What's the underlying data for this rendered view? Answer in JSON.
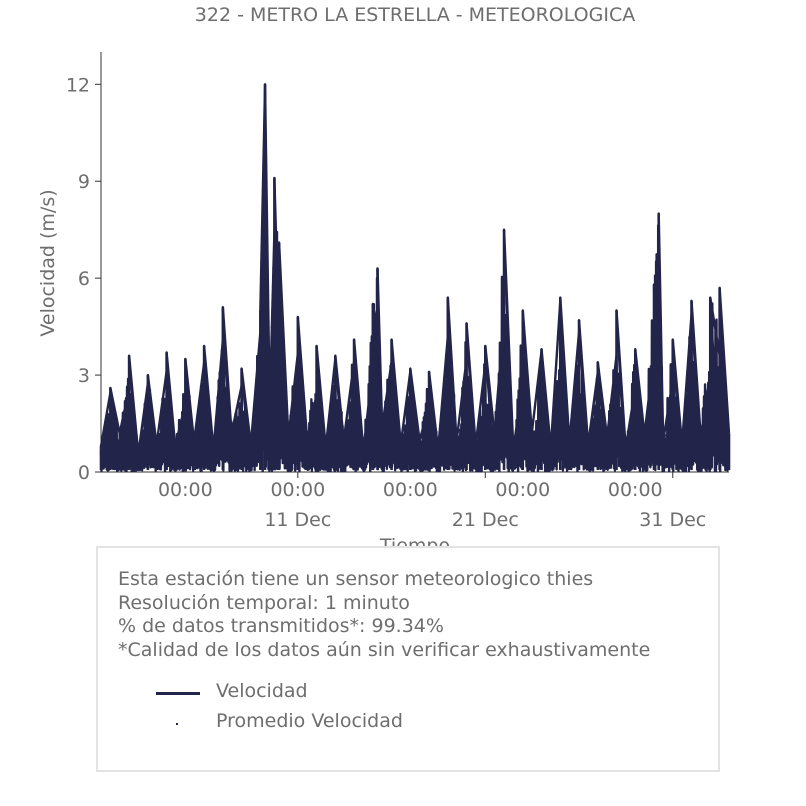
{
  "chart_data": {
    "type": "line",
    "title": "322 - METRO LA ESTRELLA - METEOROLOGICA",
    "xlabel": "Tiempo",
    "ylabel": "Velocidad (m/s)",
    "ylim": [
      0,
      13
    ],
    "yticks": [
      0,
      3,
      6,
      9,
      12
    ],
    "x_range": [
      "2023-11-30T12:00",
      "2024-01-03T00:00"
    ],
    "major_ticks": [
      {
        "x": "2023-12-11",
        "label": "11 Dec"
      },
      {
        "x": "2023-12-21",
        "label": "21 Dec"
      },
      {
        "x": "2023-12-31",
        "label": "31 Dec"
      }
    ],
    "minor_ticks": [
      {
        "x": "2023-12-05",
        "label": "00:00"
      },
      {
        "x": "2023-12-11T00:00",
        "label": "00:00"
      },
      {
        "x": "2023-12-17",
        "label": "00:00"
      },
      {
        "x": "2023-12-23",
        "label": "00:00"
      },
      {
        "x": "2023-12-29",
        "label": "00:00"
      }
    ],
    "grid": false,
    "series": [
      {
        "name": "Velocidad",
        "color": "#22244a",
        "points": [
          [
            "2023-11-30T12:00",
            0.8
          ],
          [
            "2023-12-01T00:00",
            2.6
          ],
          [
            "2023-12-01T12:00",
            1.2
          ],
          [
            "2023-12-02T00:00",
            3.6
          ],
          [
            "2023-12-02T12:00",
            0.6
          ],
          [
            "2023-12-03T00:00",
            3.0
          ],
          [
            "2023-12-03T12:00",
            1.0
          ],
          [
            "2023-12-04T00:00",
            3.7
          ],
          [
            "2023-12-04T12:00",
            0.9
          ],
          [
            "2023-12-05T00:00",
            3.5
          ],
          [
            "2023-12-05T12:00",
            1.1
          ],
          [
            "2023-12-06T00:00",
            3.9
          ],
          [
            "2023-12-06T12:00",
            0.7
          ],
          [
            "2023-12-07T00:00",
            5.1
          ],
          [
            "2023-12-07T12:00",
            1.3
          ],
          [
            "2023-12-08T00:00",
            3.2
          ],
          [
            "2023-12-08T12:00",
            0.9
          ],
          [
            "2023-12-09T00:00",
            5.0
          ],
          [
            "2023-12-09T06:00",
            12.0
          ],
          [
            "2023-12-09T12:00",
            2.0
          ],
          [
            "2023-12-09T18:00",
            9.1
          ],
          [
            "2023-12-10T00:00",
            7.1
          ],
          [
            "2023-12-10T12:00",
            1.1
          ],
          [
            "2023-12-11T00:00",
            4.8
          ],
          [
            "2023-12-11T12:00",
            1.0
          ],
          [
            "2023-12-12T00:00",
            3.9
          ],
          [
            "2023-12-12T12:00",
            0.8
          ],
          [
            "2023-12-13T00:00",
            3.6
          ],
          [
            "2023-12-13T12:00",
            1.2
          ],
          [
            "2023-12-14T00:00",
            4.1
          ],
          [
            "2023-12-14T12:00",
            0.7
          ],
          [
            "2023-12-15T00:00",
            5.2
          ],
          [
            "2023-12-15T06:00",
            6.3
          ],
          [
            "2023-12-15T12:00",
            1.4
          ],
          [
            "2023-12-16T00:00",
            4.1
          ],
          [
            "2023-12-16T12:00",
            0.9
          ],
          [
            "2023-12-17T00:00",
            3.2
          ],
          [
            "2023-12-17T12:00",
            1.0
          ],
          [
            "2023-12-18T00:00",
            3.1
          ],
          [
            "2023-12-18T12:00",
            0.8
          ],
          [
            "2023-12-19T00:00",
            5.4
          ],
          [
            "2023-12-19T12:00",
            1.1
          ],
          [
            "2023-12-20T00:00",
            4.6
          ],
          [
            "2023-12-20T12:00",
            0.9
          ],
          [
            "2023-12-21T00:00",
            3.9
          ],
          [
            "2023-12-21T12:00",
            1.2
          ],
          [
            "2023-12-22T00:00",
            7.5
          ],
          [
            "2023-12-22T12:00",
            0.7
          ],
          [
            "2023-12-23T00:00",
            5.0
          ],
          [
            "2023-12-23T12:00",
            1.3
          ],
          [
            "2023-12-24T00:00",
            3.8
          ],
          [
            "2023-12-24T12:00",
            0.8
          ],
          [
            "2023-12-25T00:00",
            5.4
          ],
          [
            "2023-12-25T12:00",
            1.0
          ],
          [
            "2023-12-26T00:00",
            4.7
          ],
          [
            "2023-12-26T12:00",
            0.9
          ],
          [
            "2023-12-27T00:00",
            3.4
          ],
          [
            "2023-12-27T12:00",
            1.1
          ],
          [
            "2023-12-28T00:00",
            5.0
          ],
          [
            "2023-12-28T12:00",
            0.8
          ],
          [
            "2023-12-29T00:00",
            3.8
          ],
          [
            "2023-12-29T12:00",
            1.2
          ],
          [
            "2023-12-30T00:00",
            5.8
          ],
          [
            "2023-12-30T06:00",
            8.0
          ],
          [
            "2023-12-30T12:00",
            1.0
          ],
          [
            "2023-12-31T00:00",
            4.1
          ],
          [
            "2023-12-31T12:00",
            0.9
          ],
          [
            "2024-01-01T00:00",
            5.3
          ],
          [
            "2024-01-01T12:00",
            1.1
          ],
          [
            "2024-01-02T00:00",
            5.4
          ],
          [
            "2024-01-02T12:00",
            5.7
          ],
          [
            "2024-01-03T00:00",
            1.2
          ]
        ]
      },
      {
        "name": "Promedio Velocidad",
        "color": "#22244a",
        "points": []
      }
    ]
  },
  "info": {
    "line1": "Esta estación tiene un sensor meteorologico thies",
    "line2": "Resolución temporal: 1 minuto",
    "line3": "% de datos transmitidos*: 99.34%",
    "line4": "*Calidad de los datos aún sin verificar exhaustivamente"
  },
  "legend": {
    "item1": "Velocidad",
    "item2": "Promedio Velocidad"
  }
}
